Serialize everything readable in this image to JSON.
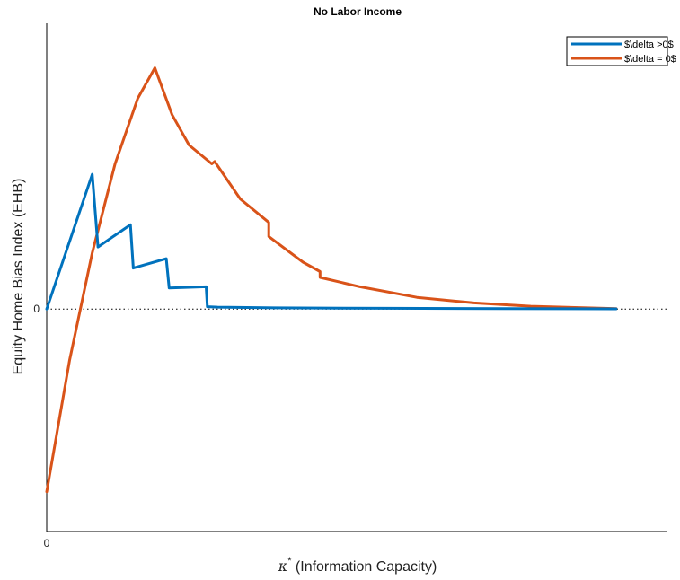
{
  "chart_data": {
    "type": "line",
    "title": "No Labor Income",
    "xlabel_symbol": "κ",
    "xlabel_superscript": "*",
    "xlabel_text": " (Information Capacity)",
    "ylabel": "Equity Home Bias Index (EHB)",
    "xlim": [
      0,
      1.09
    ],
    "ylim": [
      -0.95,
      1.22
    ],
    "x_ticks": [
      {
        "value": 0,
        "label": "0"
      }
    ],
    "y_ticks": [
      {
        "value": 0,
        "label": "0"
      }
    ],
    "zero_line": true,
    "grid": false,
    "legend_position": "top-right",
    "series": [
      {
        "name": "$\\delta >0$",
        "color": "#0072BD",
        "x": [
          0,
          0.08,
          0.09,
          0.147,
          0.152,
          0.21,
          0.215,
          0.28,
          0.282,
          0.3,
          0.4,
          0.6,
          0.8,
          1.0
        ],
        "y": [
          0,
          0.575,
          0.265,
          0.36,
          0.175,
          0.215,
          0.09,
          0.095,
          0.01,
          0.008,
          0.005,
          0.003,
          0.002,
          0.001
        ]
      },
      {
        "name": "$\\delta = 0$",
        "color": "#D95319",
        "x": [
          0,
          0.04,
          0.08,
          0.12,
          0.16,
          0.19,
          0.22,
          0.25,
          0.29,
          0.295,
          0.34,
          0.39,
          0.39,
          0.45,
          0.48,
          0.48,
          0.55,
          0.65,
          0.75,
          0.85,
          0.95,
          1.0
        ],
        "y": [
          -0.78,
          -0.22,
          0.24,
          0.62,
          0.9,
          1.03,
          0.83,
          0.7,
          0.62,
          0.63,
          0.47,
          0.37,
          0.31,
          0.2,
          0.16,
          0.135,
          0.095,
          0.05,
          0.026,
          0.012,
          0.005,
          0.002
        ]
      }
    ]
  }
}
